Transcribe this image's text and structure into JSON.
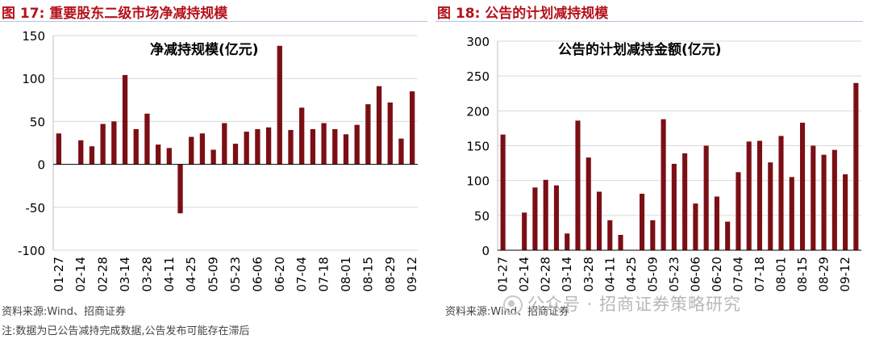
{
  "figures": [
    {
      "id": "left",
      "fig_label": "图 17:  重要股东二级市场净减持规模",
      "source": "资料来源:Wind、招商证券",
      "note": "注:数据为已公告减持完成数据,公告发布可能存在滞后",
      "bar_color": "#7b0f14"
    },
    {
      "id": "right",
      "fig_label": "图 18:  公告的计划减持规模",
      "source": "资料来源:Wind、招商证券",
      "watermark": "公众号 · 招商证券策略研究",
      "bar_color": "#7b0f14"
    }
  ],
  "chart_data": [
    {
      "type": "bar",
      "title": "净减持规模(亿元)",
      "ylim": [
        -100,
        150
      ],
      "yticks": [
        150,
        100,
        50,
        0,
        -50,
        -100
      ],
      "grid": true,
      "tick_labels": [
        "01-27",
        "02-14",
        "02-28",
        "03-14",
        "03-28",
        "04-11",
        "04-25",
        "05-09",
        "05-23",
        "06-06",
        "06-20",
        "07-04",
        "07-18",
        "08-01",
        "08-15",
        "08-29",
        "09-12"
      ],
      "values": [
        36,
        null,
        28,
        21,
        47,
        50,
        104,
        41,
        59,
        23,
        19,
        -57,
        32,
        36,
        17,
        48,
        24,
        38,
        41,
        43,
        138,
        40,
        66,
        41,
        48,
        41,
        35,
        46,
        70,
        91,
        72,
        30,
        85
      ]
    },
    {
      "type": "bar",
      "title": "公告的计划减持金额(亿元)",
      "ylim": [
        0,
        300
      ],
      "yticks": [
        300,
        250,
        200,
        150,
        100,
        50,
        0
      ],
      "grid": true,
      "tick_labels": [
        "01-27",
        "02-14",
        "02-28",
        "03-14",
        "03-28",
        "04-11",
        "04-25",
        "05-09",
        "05-23",
        "06-06",
        "06-20",
        "07-04",
        "07-18",
        "08-01",
        "08-15",
        "08-29",
        "09-12"
      ],
      "values": [
        166,
        null,
        54,
        90,
        101,
        93,
        24,
        186,
        133,
        84,
        43,
        22,
        null,
        81,
        43,
        188,
        124,
        139,
        67,
        150,
        77,
        41,
        112,
        156,
        157,
        126,
        164,
        105,
        183,
        150,
        137,
        144,
        109,
        240
      ]
    }
  ]
}
